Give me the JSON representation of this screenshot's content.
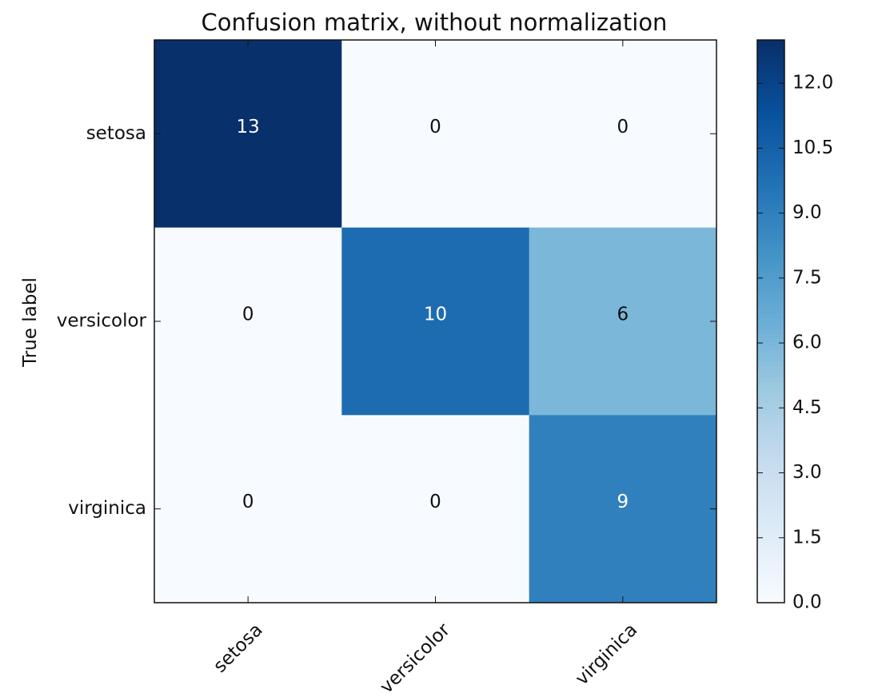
{
  "chart_data": {
    "type": "heatmap",
    "title": "Confusion matrix, without normalization",
    "ylabel": "True label",
    "xlabel": "",
    "x_categories": [
      "setosa",
      "versicolor",
      "virginica"
    ],
    "y_categories": [
      "setosa",
      "versicolor",
      "virginica"
    ],
    "values": [
      [
        13,
        0,
        0
      ],
      [
        0,
        10,
        6
      ],
      [
        0,
        0,
        9
      ]
    ],
    "colormap": "Blues",
    "colorbar": {
      "min": 0,
      "max": 13,
      "ticks": [
        0.0,
        1.5,
        3.0,
        4.5,
        6.0,
        7.5,
        9.0,
        10.5,
        12.0
      ],
      "tick_labels": [
        "0.0",
        "1.5",
        "3.0",
        "4.5",
        "6.0",
        "7.5",
        "9.0",
        "10.5",
        "12.0"
      ]
    },
    "text_color_light": "#ffffff",
    "text_color_dark": "#111111",
    "x_tick_rotation_deg": 45,
    "grid": false
  }
}
